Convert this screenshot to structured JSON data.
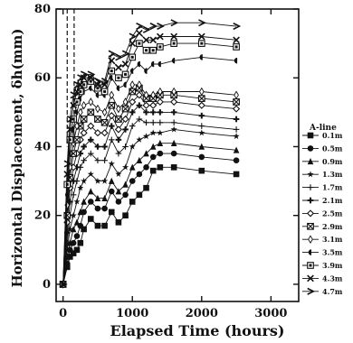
{
  "chart_data": {
    "type": "line",
    "xlabel": "Elapsed Time (hours)",
    "ylabel": "Horizontal Displacement, δh(mm)",
    "xlim": [
      -100,
      3400
    ],
    "ylim": [
      -5,
      80
    ],
    "xticks": [
      0,
      1000,
      2000,
      3000
    ],
    "yticks": [
      0,
      20,
      40,
      60,
      80
    ],
    "reference_lines_x": [
      60,
      160
    ],
    "legend": {
      "title": "A-line",
      "position": "right"
    },
    "series": [
      {
        "name": "0.1m",
        "marker": "square-filled",
        "points": [
          [
            0,
            0
          ],
          [
            60,
            5
          ],
          [
            100,
            8
          ],
          [
            150,
            9
          ],
          [
            200,
            10
          ],
          [
            250,
            12
          ],
          [
            300,
            16
          ],
          [
            400,
            19
          ],
          [
            500,
            17
          ],
          [
            600,
            17
          ],
          [
            700,
            21
          ],
          [
            800,
            18
          ],
          [
            900,
            20
          ],
          [
            1000,
            24
          ],
          [
            1100,
            26
          ],
          [
            1200,
            28
          ],
          [
            1300,
            33
          ],
          [
            1400,
            34
          ],
          [
            1600,
            34
          ],
          [
            2000,
            33
          ],
          [
            2500,
            32
          ]
        ]
      },
      {
        "name": "0.5m",
        "marker": "circle-filled",
        "points": [
          [
            0,
            0
          ],
          [
            60,
            6
          ],
          [
            100,
            10
          ],
          [
            150,
            12
          ],
          [
            200,
            14
          ],
          [
            250,
            17
          ],
          [
            300,
            21
          ],
          [
            400,
            24
          ],
          [
            500,
            22
          ],
          [
            600,
            22
          ],
          [
            700,
            27
          ],
          [
            800,
            24
          ],
          [
            900,
            26
          ],
          [
            1000,
            30
          ],
          [
            1100,
            32
          ],
          [
            1200,
            34
          ],
          [
            1300,
            37
          ],
          [
            1400,
            38
          ],
          [
            1600,
            38
          ],
          [
            2000,
            37
          ],
          [
            2500,
            36
          ]
        ]
      },
      {
        "name": "0.9m",
        "marker": "triangle-filled",
        "points": [
          [
            0,
            0
          ],
          [
            60,
            8
          ],
          [
            100,
            12
          ],
          [
            150,
            16
          ],
          [
            200,
            18
          ],
          [
            250,
            21
          ],
          [
            300,
            24
          ],
          [
            400,
            27
          ],
          [
            500,
            25
          ],
          [
            600,
            25
          ],
          [
            700,
            30
          ],
          [
            800,
            27
          ],
          [
            900,
            29
          ],
          [
            1000,
            34
          ],
          [
            1100,
            36
          ],
          [
            1200,
            38
          ],
          [
            1300,
            40
          ],
          [
            1400,
            41
          ],
          [
            1600,
            41
          ],
          [
            2000,
            40
          ],
          [
            2500,
            39
          ]
        ]
      },
      {
        "name": "1.3m",
        "marker": "star",
        "points": [
          [
            0,
            0
          ],
          [
            60,
            10
          ],
          [
            100,
            16
          ],
          [
            150,
            20
          ],
          [
            200,
            24
          ],
          [
            250,
            28
          ],
          [
            300,
            30
          ],
          [
            400,
            32
          ],
          [
            500,
            30
          ],
          [
            600,
            30
          ],
          [
            700,
            35
          ],
          [
            800,
            32
          ],
          [
            900,
            34
          ],
          [
            1000,
            40
          ],
          [
            1100,
            42
          ],
          [
            1200,
            43
          ],
          [
            1300,
            44
          ],
          [
            1400,
            44
          ],
          [
            1600,
            45
          ],
          [
            2000,
            44
          ],
          [
            2500,
            43
          ]
        ]
      },
      {
        "name": "1.7m",
        "marker": "plus-thin",
        "points": [
          [
            0,
            0
          ],
          [
            60,
            12
          ],
          [
            100,
            20
          ],
          [
            150,
            26
          ],
          [
            200,
            30
          ],
          [
            250,
            34
          ],
          [
            300,
            36
          ],
          [
            400,
            38
          ],
          [
            500,
            36
          ],
          [
            600,
            36
          ],
          [
            700,
            42
          ],
          [
            800,
            38
          ],
          [
            900,
            40
          ],
          [
            1000,
            46
          ],
          [
            1100,
            48
          ],
          [
            1200,
            47
          ],
          [
            1300,
            47
          ],
          [
            1400,
            47
          ],
          [
            1600,
            47
          ],
          [
            2000,
            46
          ],
          [
            2500,
            45
          ]
        ]
      },
      {
        "name": "2.1m",
        "marker": "plus-bold",
        "points": [
          [
            0,
            0
          ],
          [
            60,
            15
          ],
          [
            100,
            24
          ],
          [
            150,
            30
          ],
          [
            200,
            34
          ],
          [
            250,
            38
          ],
          [
            300,
            40
          ],
          [
            400,
            42
          ],
          [
            500,
            40
          ],
          [
            600,
            40
          ],
          [
            700,
            46
          ],
          [
            800,
            42
          ],
          [
            900,
            45
          ],
          [
            1000,
            50
          ],
          [
            1100,
            52
          ],
          [
            1200,
            50
          ],
          [
            1300,
            50
          ],
          [
            1400,
            50
          ],
          [
            1600,
            50
          ],
          [
            2000,
            49
          ],
          [
            2500,
            48
          ]
        ]
      },
      {
        "name": "2.5m",
        "marker": "diamond-open",
        "points": [
          [
            0,
            0
          ],
          [
            60,
            18
          ],
          [
            100,
            28
          ],
          [
            150,
            34
          ],
          [
            200,
            38
          ],
          [
            250,
            42
          ],
          [
            300,
            44
          ],
          [
            400,
            46
          ],
          [
            500,
            44
          ],
          [
            600,
            44
          ],
          [
            700,
            49
          ],
          [
            800,
            45
          ],
          [
            900,
            48
          ],
          [
            1000,
            53
          ],
          [
            1100,
            55
          ],
          [
            1200,
            52
          ],
          [
            1300,
            52
          ],
          [
            1400,
            53
          ],
          [
            1600,
            53
          ],
          [
            2000,
            52
          ],
          [
            2500,
            51
          ]
        ]
      },
      {
        "name": "2.9m",
        "marker": "square-x",
        "points": [
          [
            0,
            0
          ],
          [
            60,
            20
          ],
          [
            100,
            31
          ],
          [
            150,
            38
          ],
          [
            200,
            42
          ],
          [
            250,
            46
          ],
          [
            300,
            48
          ],
          [
            400,
            50
          ],
          [
            500,
            48
          ],
          [
            600,
            47
          ],
          [
            700,
            52
          ],
          [
            800,
            48
          ],
          [
            900,
            51
          ],
          [
            1000,
            56
          ],
          [
            1100,
            57
          ],
          [
            1200,
            54
          ],
          [
            1300,
            54
          ],
          [
            1400,
            55
          ],
          [
            1600,
            55
          ],
          [
            2000,
            54
          ],
          [
            2500,
            53
          ]
        ]
      },
      {
        "name": "3.1m",
        "marker": "diamond-thin",
        "points": [
          [
            0,
            0
          ],
          [
            60,
            23
          ],
          [
            100,
            34
          ],
          [
            150,
            41
          ],
          [
            200,
            46
          ],
          [
            250,
            50
          ],
          [
            300,
            52
          ],
          [
            400,
            53
          ],
          [
            500,
            51
          ],
          [
            600,
            50
          ],
          [
            700,
            55
          ],
          [
            800,
            51
          ],
          [
            900,
            53
          ],
          [
            1000,
            58
          ],
          [
            1100,
            58
          ],
          [
            1200,
            55
          ],
          [
            1300,
            55
          ],
          [
            1400,
            56
          ],
          [
            1600,
            56
          ],
          [
            2000,
            56
          ],
          [
            2500,
            55
          ]
        ]
      },
      {
        "name": "3.5m",
        "marker": "half-circle",
        "points": [
          [
            0,
            0
          ],
          [
            60,
            26
          ],
          [
            100,
            38
          ],
          [
            150,
            45
          ],
          [
            200,
            50
          ],
          [
            250,
            54
          ],
          [
            300,
            56
          ],
          [
            400,
            57
          ],
          [
            500,
            55
          ],
          [
            600,
            55
          ],
          [
            700,
            60
          ],
          [
            800,
            57
          ],
          [
            900,
            58
          ],
          [
            1000,
            62
          ],
          [
            1100,
            64
          ],
          [
            1200,
            62
          ],
          [
            1300,
            64
          ],
          [
            1400,
            64
          ],
          [
            1600,
            65
          ],
          [
            2000,
            66
          ],
          [
            2500,
            65
          ]
        ]
      },
      {
        "name": "3.9m",
        "marker": "square-open",
        "points": [
          [
            0,
            0
          ],
          [
            60,
            29
          ],
          [
            100,
            42
          ],
          [
            150,
            48
          ],
          [
            200,
            53
          ],
          [
            250,
            56
          ],
          [
            300,
            58
          ],
          [
            400,
            59
          ],
          [
            500,
            57
          ],
          [
            600,
            56
          ],
          [
            700,
            62
          ],
          [
            800,
            60
          ],
          [
            900,
            61
          ],
          [
            1000,
            66
          ],
          [
            1100,
            70
          ],
          [
            1200,
            68
          ],
          [
            1300,
            68
          ],
          [
            1400,
            69
          ],
          [
            1600,
            70
          ],
          [
            2000,
            70
          ],
          [
            2500,
            69
          ]
        ]
      },
      {
        "name": "4.3m",
        "marker": "x-mark",
        "points": [
          [
            0,
            0
          ],
          [
            60,
            32
          ],
          [
            100,
            45
          ],
          [
            150,
            52
          ],
          [
            200,
            56
          ],
          [
            250,
            58
          ],
          [
            300,
            60
          ],
          [
            400,
            60
          ],
          [
            500,
            58
          ],
          [
            600,
            58
          ],
          [
            700,
            65
          ],
          [
            800,
            63
          ],
          [
            900,
            64
          ],
          [
            1000,
            70
          ],
          [
            1100,
            73
          ],
          [
            1200,
            71
          ],
          [
            1300,
            71
          ],
          [
            1400,
            72
          ],
          [
            1600,
            72
          ],
          [
            2000,
            72
          ],
          [
            2500,
            71
          ]
        ]
      },
      {
        "name": "4.7m",
        "marker": "arrow-right",
        "points": [
          [
            0,
            0
          ],
          [
            60,
            35
          ],
          [
            100,
            48
          ],
          [
            150,
            55
          ],
          [
            200,
            58
          ],
          [
            250,
            60
          ],
          [
            300,
            61
          ],
          [
            400,
            61
          ],
          [
            500,
            59
          ],
          [
            600,
            59
          ],
          [
            700,
            67
          ],
          [
            800,
            66
          ],
          [
            900,
            67
          ],
          [
            1000,
            72
          ],
          [
            1100,
            75
          ],
          [
            1200,
            74
          ],
          [
            1300,
            75
          ],
          [
            1400,
            75
          ],
          [
            1600,
            76
          ],
          [
            2000,
            76
          ],
          [
            2500,
            75
          ]
        ]
      }
    ]
  }
}
